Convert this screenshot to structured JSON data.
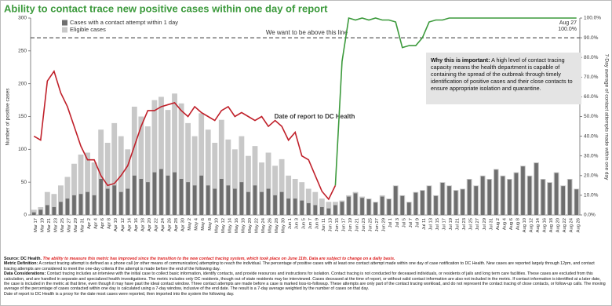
{
  "chart_data": {
    "type": "bar",
    "title": "Ability to contact trace new positive cases within one day of report",
    "x_label": "Date of report to DC Health",
    "y_label": "Number of positive cases",
    "y2_label": "7-Day average of contact attempts made within one day",
    "categories": [
      "Mar 17",
      "Mar 19",
      "Mar 21",
      "Mar 23",
      "Mar 25",
      "Mar 27",
      "Mar 29",
      "Mar 31",
      "Apr 2",
      "Apr 4",
      "Apr 6",
      "Apr 8",
      "Apr 10",
      "Apr 12",
      "Apr 14",
      "Apr 16",
      "Apr 18",
      "Apr 20",
      "Apr 22",
      "Apr 24",
      "Apr 26",
      "Apr 28",
      "Apr 30",
      "May 2",
      "May 4",
      "May 6",
      "May 8",
      "May 10",
      "May 12",
      "May 14",
      "May 16",
      "May 18",
      "May 20",
      "May 22",
      "May 24",
      "May 26",
      "May 28",
      "May 30",
      "Jun 1",
      "Jun 3",
      "Jun 5",
      "Jun 7",
      "Jun 9",
      "Jun 11",
      "Jun 13",
      "Jun 15",
      "Jun 17",
      "Jun 19",
      "Jun 21",
      "Jun 23",
      "Jun 25",
      "Jun 27",
      "Jun 29",
      "Jul 1",
      "Jul 3",
      "Jul 5",
      "Jul 7",
      "Jul 9",
      "Jul 11",
      "Jul 13",
      "Jul 15",
      "Jul 17",
      "Jul 19",
      "Jul 21",
      "Jul 23",
      "Jul 25",
      "Jul 27",
      "Jul 29",
      "Jul 31",
      "Aug 2",
      "Aug 4",
      "Aug 6",
      "Aug 8",
      "Aug 10",
      "Aug 12",
      "Aug 14",
      "Aug 16",
      "Aug 18",
      "Aug 20",
      "Aug 22",
      "Aug 24",
      "Aug 26"
    ],
    "series": [
      {
        "name": "Eligible cases",
        "color": "#c8c8c8",
        "values": [
          8,
          12,
          35,
          32,
          45,
          58,
          78,
          92,
          95,
          80,
          130,
          110,
          140,
          120,
          100,
          165,
          150,
          135,
          175,
          180,
          160,
          185,
          170,
          140,
          120,
          155,
          130,
          110,
          145,
          115,
          100,
          120,
          90,
          105,
          80,
          95,
          75,
          85,
          60,
          55,
          50,
          40,
          35,
          25,
          20,
          20,
          22,
          30,
          35,
          28,
          25,
          20,
          30,
          25,
          45,
          30,
          20,
          35,
          38,
          45,
          30,
          50,
          45,
          38,
          40,
          55,
          45,
          60,
          55,
          70,
          60,
          55,
          65,
          75,
          60,
          80,
          55,
          50,
          65,
          45,
          55,
          40
        ]
      },
      {
        "name": "Cases with a contact attempt within 1 day",
        "color": "#6e6e6e",
        "values": [
          4,
          8,
          15,
          12,
          20,
          25,
          30,
          32,
          35,
          30,
          55,
          40,
          45,
          35,
          40,
          60,
          55,
          50,
          65,
          70,
          60,
          65,
          55,
          50,
          45,
          60,
          45,
          40,
          55,
          45,
          40,
          50,
          35,
          45,
          35,
          40,
          30,
          35,
          25,
          25,
          22,
          18,
          15,
          12,
          10,
          15,
          20,
          28,
          33,
          26,
          24,
          19,
          28,
          24,
          44,
          29,
          19,
          34,
          37,
          44,
          29,
          49,
          44,
          37,
          39,
          54,
          44,
          59,
          54,
          69,
          59,
          54,
          64,
          74,
          59,
          79,
          54,
          49,
          64,
          44,
          54,
          39
        ]
      },
      {
        "type": "line",
        "axis": "y2",
        "color": "#c0202a",
        "values": [
          40,
          38,
          68,
          73,
          62,
          55,
          45,
          35,
          28,
          28,
          20,
          15,
          16,
          20,
          25,
          35,
          45,
          53,
          53,
          55,
          56,
          57,
          53,
          50,
          55,
          52,
          50,
          48,
          53,
          55,
          50,
          52,
          50,
          48,
          50,
          45,
          48,
          45,
          38,
          42,
          30,
          28,
          20,
          12,
          8,
          15,
          null,
          null,
          null,
          null,
          null,
          null,
          null,
          null,
          null,
          null,
          null,
          null,
          null,
          null,
          null,
          null,
          null,
          null,
          null,
          null,
          null,
          null,
          null,
          null,
          null,
          null,
          null,
          null,
          null,
          null,
          null,
          null,
          null,
          null,
          null,
          null
        ]
      },
      {
        "type": "line",
        "axis": "y2",
        "color": "#3c9a3c",
        "values": [
          null,
          null,
          null,
          null,
          null,
          null,
          null,
          null,
          null,
          null,
          null,
          null,
          null,
          null,
          null,
          null,
          null,
          null,
          null,
          null,
          null,
          null,
          null,
          null,
          null,
          null,
          null,
          null,
          null,
          null,
          null,
          null,
          null,
          null,
          null,
          null,
          null,
          null,
          null,
          null,
          null,
          null,
          null,
          null,
          null,
          15,
          78,
          100,
          99,
          100,
          99,
          100,
          99,
          99,
          98,
          85,
          86,
          86,
          90,
          98,
          99,
          99,
          100,
          100,
          100,
          100,
          100,
          100,
          100,
          100,
          100,
          100,
          100,
          100,
          100,
          100,
          100,
          100,
          100,
          100,
          100,
          100
        ]
      }
    ],
    "ylim": [
      0,
      300
    ],
    "yticks": [
      0,
      50,
      100,
      150,
      200,
      250,
      300
    ],
    "y2lim": [
      0,
      100
    ],
    "y2ticks": [
      {
        "value": 0,
        "label": "0.0%"
      },
      {
        "value": 10,
        "label": "10.0%"
      },
      {
        "value": 20,
        "label": "20.0%"
      },
      {
        "value": 30,
        "label": "30.0%"
      },
      {
        "value": 40,
        "label": "40.0%"
      },
      {
        "value": 50,
        "label": "50.0%"
      },
      {
        "value": 60,
        "label": "60.0%"
      },
      {
        "value": 70,
        "label": "70.0%"
      },
      {
        "value": 80,
        "label": "80.0%"
      },
      {
        "value": 90,
        "label": "90.0%"
      },
      {
        "value": 100,
        "label": "100.0%"
      }
    ],
    "reference_line": {
      "value": 90,
      "label": "We want to be above this line"
    },
    "end_annotation": {
      "date": "Aug 27",
      "label": "100.0%"
    },
    "legend": "upper left",
    "note_box": {
      "heading": "Why this is important:",
      "text": " A high level of contact tracing capacity means the health department is capable of containing the spread of the outbreak through timely identification of positive cases and their close contacts to ensure appropriate isolation and quarantine."
    }
  },
  "footer": {
    "source_label": "Source: DC Health.",
    "source_note": " The ability to measure this metric has improved since the transition to the new contact tracing system, which took place on June 11th. Data are subject to change on a daily basis.",
    "definition_label": "Metric Definition:",
    "definition": " A contact tracing attempt is defined as a phone call (or other means of communication) attempting to reach the individual. The percentage of positive cases with at least one contact attempt made within one day of case notification to DC Health. New cases are reported largely through 12pm, and contact tracing attempts are considered to meet the one-day criteria if the attempt is made before the end of the following day.",
    "considerations_label": "Data Considerations:",
    "considerations": " Contact tracing includes an interview with the initial case to collect basic information, identify contacts, and provide resources and instructions for isolation. Contact tracing is not conducted for deceased individuals, or residents of jails and long term care facilities. These cases are excluded from this calculation, and are handled in separate and specialized health investigations. The metric includes only DC residents, though out of state residents may be interviewed. Cases deceased at the time of report, or without valid contact information are also not included in the metric. If contact information is identified at a later date, the case is included in the metric at that time, even though it may have past the ideal contact window. Three contact attempts are made before a case is marked loss-to-followup. These attempts are only part of the contact tracing workload, and do not represent the contact tracing of close contacts, or follow-up calls. The moving average of the percentage of cases contacted within one day is calculated using a 7-day window, inclusive of the end date. The result is a 7-day average weighted by the number of cases on that day.",
    "proxy": "Date of report to DC Health is a proxy for the date most cases were reported, then imported into the system the following day."
  }
}
